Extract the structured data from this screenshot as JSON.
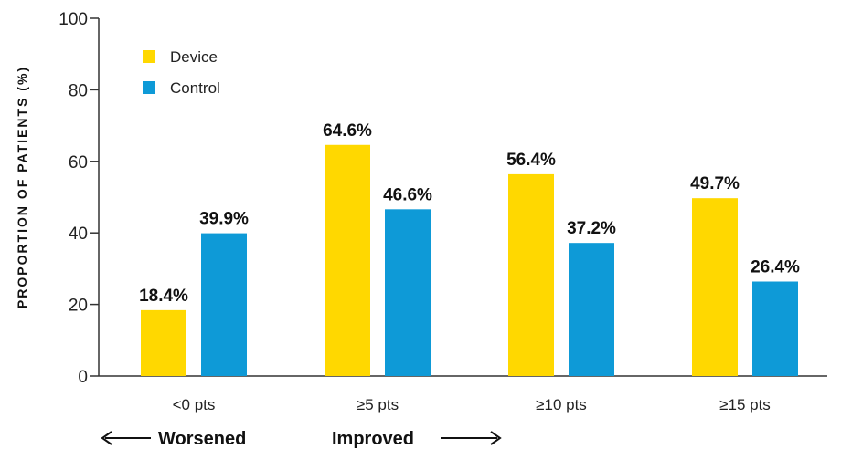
{
  "colors": {
    "device": "#FFD800",
    "control": "#0E9AD7",
    "axis": "#333333"
  },
  "chart_data": {
    "type": "bar",
    "ylabel": "PROPORTION OF PATIENTS (%)",
    "ylim": [
      0,
      100
    ],
    "yticks": [
      0,
      20,
      40,
      60,
      80,
      100
    ],
    "grid": false,
    "legend_position": "top-left",
    "categories": [
      "<0 pts",
      "≥5 pts",
      "≥10 pts",
      "≥15 pts"
    ],
    "series": [
      {
        "name": "Device",
        "values": [
          18.4,
          64.6,
          56.4,
          49.7
        ],
        "labels": [
          "18.4%",
          "64.6%",
          "56.4%",
          "49.7%"
        ]
      },
      {
        "name": "Control",
        "values": [
          39.9,
          46.6,
          37.2,
          26.4
        ],
        "labels": [
          "39.9%",
          "46.6%",
          "37.2%",
          "26.4%"
        ]
      }
    ],
    "annotations": {
      "worsened": "Worsened",
      "improved": "Improved"
    }
  }
}
